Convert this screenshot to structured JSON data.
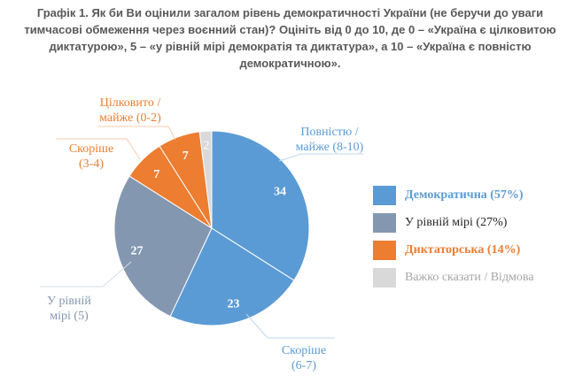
{
  "chart_data": {
    "type": "pie",
    "title": "Графік 1. Як би Ви оцінили загалом рівень демократичності України (не беручи до уваги тимчасові обмеження через воєнний стан)? Оцініть від 0 до 10, де 0 – «Україна є цілковитою диктатурою», 5 – «у рівній мірі демократія та диктатура», а 10 – «Україна є повністю демократичною».",
    "slices": [
      {
        "label": "Повністю / майже (8-10)",
        "value": 34,
        "color": "#5b9bd5",
        "group": 0
      },
      {
        "label": "Скоріше (6-7)",
        "value": 23,
        "color": "#5b9bd5",
        "group": 0
      },
      {
        "label": "У рівній мірі (5)",
        "value": 27,
        "color": "#8497b0",
        "group": 1
      },
      {
        "label": "Скоріше (3-4)",
        "value": 7,
        "color": "#ed7d31",
        "group": 2
      },
      {
        "label": "Цілковито / майже (0-2)",
        "value": 7,
        "color": "#ed7d31",
        "group": 2
      },
      {
        "label": "",
        "value": 2,
        "color": "#d9d9d9",
        "group": 3
      }
    ],
    "legend": [
      {
        "label": "Демократична (57%)",
        "color": "#5b9bd5",
        "text_color": "#5b9bd5",
        "bold": true
      },
      {
        "label": "У рівній мірі (27%)",
        "color": "#8497b0",
        "text_color": "#262626",
        "bold": false
      },
      {
        "label": "Диктаторська (14%)",
        "color": "#ed7d31",
        "text_color": "#ed7d31",
        "bold": true
      },
      {
        "label": "Важко сказати / Відмова",
        "color": "#d9d9d9",
        "text_color": "#a6a6a6",
        "bold": false
      }
    ],
    "legend_position": "right"
  },
  "labels": {
    "s0": [
      "Повністю /",
      "майже (8-10)"
    ],
    "s1": [
      "Скоріше",
      "(6-7)"
    ],
    "s2": [
      "У рівній",
      "мірі (5)"
    ],
    "s3": [
      "Скоріше",
      "(3-4)"
    ],
    "s4": [
      "Цілковито /",
      "майже (0-2)"
    ]
  }
}
